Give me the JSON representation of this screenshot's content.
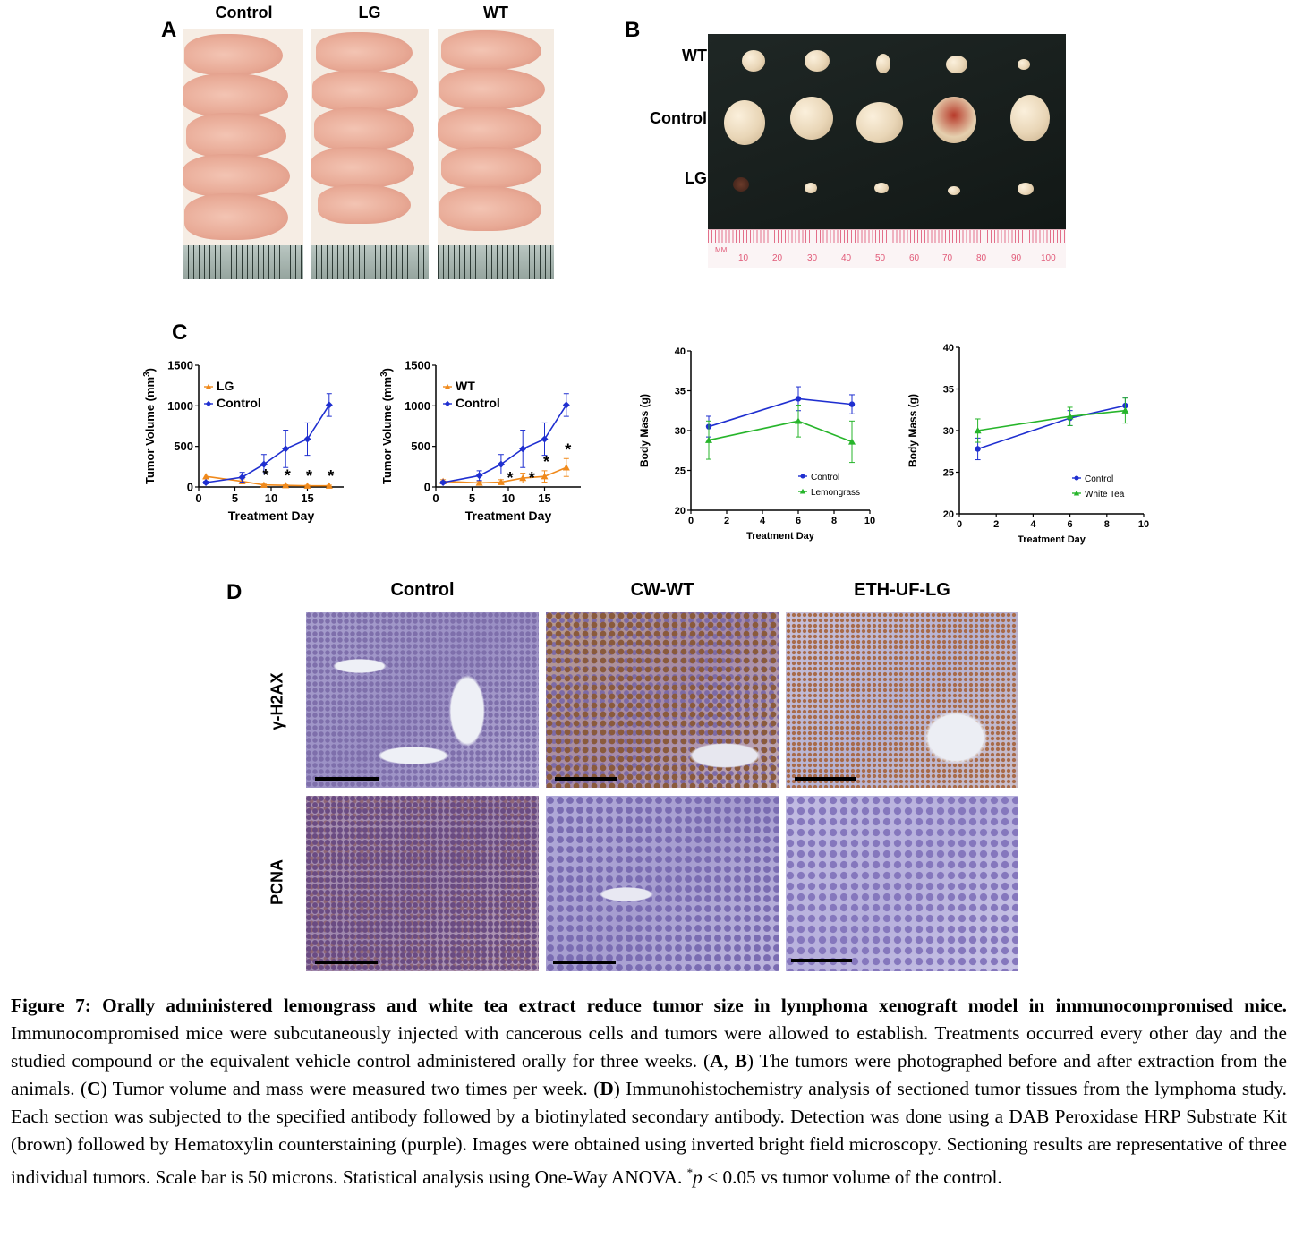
{
  "panelA": {
    "letter": "A",
    "groups": [
      "Control",
      "LG",
      "WT"
    ]
  },
  "panelB": {
    "letter": "B",
    "rows": [
      "WT",
      "Control",
      "LG"
    ],
    "ruler_labels": [
      "MM",
      "10",
      "20",
      "30",
      "40",
      "50",
      "60",
      "70",
      "80",
      "90",
      "100"
    ]
  },
  "panelC": {
    "letter": "C"
  },
  "chart_data": [
    {
      "type": "line",
      "xlabel": "Treatment Day",
      "ylabel": "Tumor Volume (mm",
      "ylabel_sup": "3",
      "ylabel_close": ")",
      "xlim": [
        0,
        20
      ],
      "ylim": [
        0,
        1500
      ],
      "xticks": [
        0,
        5,
        10,
        15
      ],
      "yticks": [
        0,
        500,
        1000,
        1500
      ],
      "series": [
        {
          "name": "LG",
          "color": "#f08a1c",
          "marker": "triangle",
          "x": [
            1,
            6,
            9,
            12,
            15,
            18
          ],
          "y": [
            130,
            70,
            25,
            20,
            15,
            15
          ],
          "err": [
            30,
            30,
            10,
            8,
            8,
            8
          ]
        },
        {
          "name": "Control",
          "color": "#1f2fd0",
          "marker": "diamond",
          "x": [
            1,
            6,
            9,
            12,
            15,
            18
          ],
          "y": [
            55,
            120,
            280,
            470,
            590,
            1010
          ],
          "err": [
            15,
            60,
            120,
            230,
            200,
            140
          ]
        }
      ],
      "stars": [
        9,
        12,
        15,
        18
      ],
      "star_label": "*"
    },
    {
      "type": "line",
      "xlabel": "Treatment Day",
      "ylabel": "Tumor Volume (mm",
      "ylabel_sup": "3",
      "ylabel_close": ")",
      "xlim": [
        0,
        20
      ],
      "ylim": [
        0,
        1500
      ],
      "xticks": [
        0,
        5,
        10,
        15
      ],
      "yticks": [
        0,
        500,
        1000,
        1500
      ],
      "series": [
        {
          "name": "WT",
          "color": "#f08a1c",
          "marker": "triangle",
          "x": [
            1,
            6,
            9,
            12,
            15,
            18
          ],
          "y": [
            70,
            50,
            60,
            110,
            130,
            240
          ],
          "err": [
            20,
            20,
            30,
            60,
            70,
            110
          ]
        },
        {
          "name": "Control",
          "color": "#1f2fd0",
          "marker": "diamond",
          "x": [
            1,
            6,
            9,
            12,
            15,
            18
          ],
          "y": [
            55,
            140,
            280,
            470,
            590,
            1010
          ],
          "err": [
            15,
            60,
            120,
            230,
            200,
            140
          ]
        }
      ],
      "stars": [
        10,
        13,
        15,
        18
      ],
      "star_label": "*"
    },
    {
      "type": "line",
      "xlabel": "Treatment Day",
      "ylabel": "Body Mass  (g)",
      "xlim": [
        0,
        10
      ],
      "ylim": [
        20,
        40
      ],
      "xticks": [
        0,
        2,
        4,
        6,
        8,
        10
      ],
      "yticks": [
        20,
        25,
        30,
        35,
        40
      ],
      "series": [
        {
          "name": "Control",
          "color": "#1f2fd0",
          "marker": "circle",
          "x": [
            1,
            6,
            9
          ],
          "y": [
            30.5,
            34.0,
            33.3
          ],
          "err": [
            1.3,
            1.5,
            1.2
          ]
        },
        {
          "name": "Lemongrass",
          "color": "#27b52b",
          "marker": "triangle",
          "x": [
            1,
            6,
            9
          ],
          "y": [
            28.8,
            31.2,
            28.6
          ],
          "err": [
            2.4,
            2.0,
            2.6
          ]
        }
      ]
    },
    {
      "type": "line",
      "xlabel": "Treatment Day",
      "ylabel": "Body Mass  (g)",
      "xlim": [
        0,
        10
      ],
      "ylim": [
        20,
        40
      ],
      "xticks": [
        0,
        2,
        4,
        6,
        8,
        10
      ],
      "yticks": [
        20,
        25,
        30,
        35,
        40
      ],
      "series": [
        {
          "name": "Control",
          "color": "#1f2fd0",
          "marker": "circle",
          "x": [
            1,
            6,
            9
          ],
          "y": [
            27.8,
            31.5,
            33.0
          ],
          "err": [
            1.3,
            0.9,
            1.0
          ]
        },
        {
          "name": "White Tea",
          "color": "#27b52b",
          "marker": "triangle",
          "x": [
            1,
            6,
            9
          ],
          "y": [
            30.0,
            31.7,
            32.4
          ],
          "err": [
            1.4,
            1.1,
            1.5
          ]
        }
      ]
    }
  ],
  "panelD": {
    "letter": "D",
    "columns": [
      "Control",
      "CW-WT",
      "ETH-UF-LG"
    ],
    "rows": [
      "γ-H2AX",
      "PCNA"
    ]
  },
  "caption": {
    "title": "Figure 7: Orally administered lemongrass and white tea extract reduce tumor size in lymphoma xenograft model in immunocompromised mice.",
    "t1": " Immunocompromised mice were subcutaneously injected with cancerous cells and tumors were allowed to establish. Treatments occurred every other day and the studied compound or the equivalent vehicle control administered orally for three weeks. (",
    "A": "A",
    "comma": ", ",
    "B": "B",
    "t2": ") The tumors were photographed before and after extraction from the animals. (",
    "C": "C",
    "t3": ") Tumor volume and mass were measured two times per week. (",
    "D": "D",
    "t4": ") Immunohistochemistry analysis of sectioned tumor tissues from the lymphoma study. Each section was subjected to the specified antibody followed by a biotinylated secondary antibody. Detection was done using a DAB Peroxidase HRP Substrate Kit (brown) followed by Hematoxylin counterstaining (purple). Images were obtained using inverted bright field microscopy. Sectioning results are representative of three individual tumors. Scale bar is 50 microns. Statistical analysis using One-Way ANOVA. ",
    "star": "*",
    "p": "p",
    "t5": " < 0.05 vs tumor volume of the control."
  }
}
